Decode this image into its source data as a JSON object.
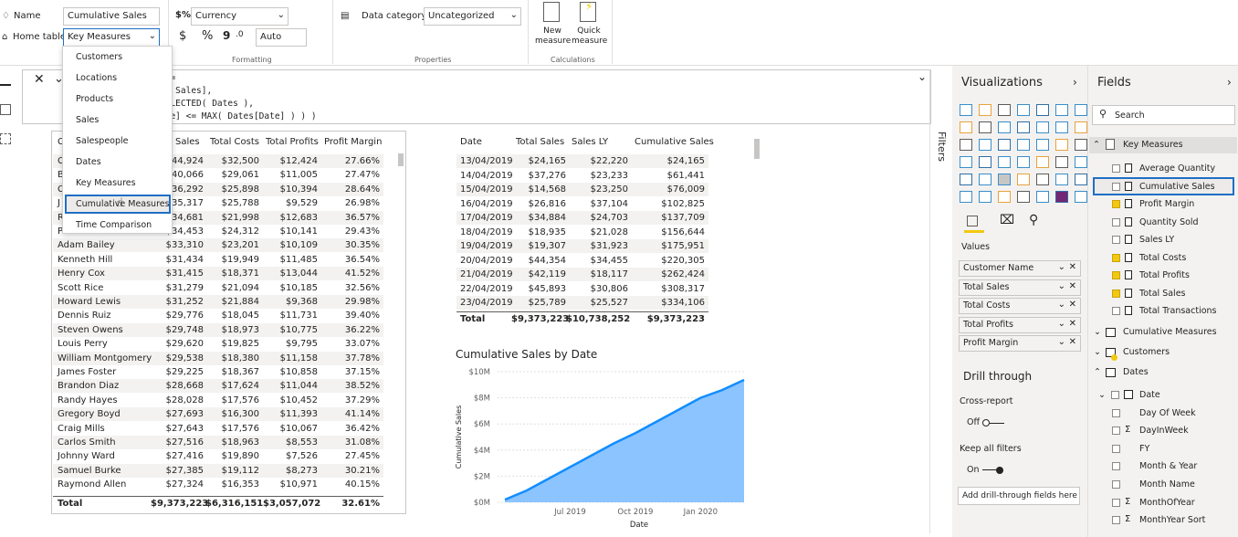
{
  "ribbon": {
    "name_label": "Name",
    "name_value": "Cumulative Sales",
    "home_table_label": "Home table",
    "home_table_value": "Key Measures",
    "format_value": "Currency",
    "currency_symbol": "$",
    "percent_symbol": "%",
    "comma_symbol": "9",
    "decimal_value": "Auto",
    "formatting_group": "Formatting",
    "data_category_label": "Data category",
    "data_category_value": "Uncategorized",
    "properties_group": "Properties",
    "new_measure_label": "New measure",
    "quick_measure_label": "Quick measure",
    "calculations_group": "Calculations"
  },
  "dropdown": {
    "items": [
      "Customers",
      "Locations",
      "Products",
      "Sales",
      "Salespeople",
      "Dates",
      "Key Measures",
      "Cumulative Measures",
      "Time Comparison"
    ],
    "selected": "Cumulative Measures"
  },
  "formula": {
    "lines": [
      "s =",
      "al Sales],",
      "SELECTED( Dates ),",
      "ate] <= MAX( Dates[Date] ) ) )"
    ]
  },
  "left_table": {
    "headers": [
      "C",
      "Sales",
      "Total Costs",
      "Total Profits",
      "Profit Margin"
    ],
    "rows": [
      [
        "C",
        "$44,924",
        "$32,500",
        "$12,424",
        "27.66%"
      ],
      [
        "B",
        "$40,066",
        "$29,061",
        "$11,005",
        "27.47%"
      ],
      [
        "C",
        "$36,292",
        "$25,898",
        "$10,394",
        "28.64%"
      ],
      [
        "J",
        "$35,317",
        "$25,788",
        "$9,529",
        "26.98%"
      ],
      [
        "R",
        "$34,681",
        "$21,998",
        "$12,683",
        "36.57%"
      ],
      [
        "Patrick Morales",
        "$34,453",
        "$24,312",
        "$10,141",
        "29.43%"
      ],
      [
        "Adam Bailey",
        "$33,310",
        "$23,201",
        "$10,109",
        "30.35%"
      ],
      [
        "Kenneth Hill",
        "$31,434",
        "$19,949",
        "$11,485",
        "36.54%"
      ],
      [
        "Henry Cox",
        "$31,415",
        "$18,371",
        "$13,044",
        "41.52%"
      ],
      [
        "Scott Rice",
        "$31,279",
        "$21,094",
        "$10,185",
        "32.56%"
      ],
      [
        "Howard Lewis",
        "$31,252",
        "$21,884",
        "$9,368",
        "29.98%"
      ],
      [
        "Dennis Ruiz",
        "$29,776",
        "$18,045",
        "$11,731",
        "39.40%"
      ],
      [
        "Steven Owens",
        "$29,748",
        "$18,973",
        "$10,775",
        "36.22%"
      ],
      [
        "Louis Perry",
        "$29,620",
        "$19,825",
        "$9,795",
        "33.07%"
      ],
      [
        "William Montgomery",
        "$29,538",
        "$18,380",
        "$11,158",
        "37.78%"
      ],
      [
        "James Foster",
        "$29,225",
        "$18,367",
        "$10,858",
        "37.15%"
      ],
      [
        "Brandon Diaz",
        "$28,668",
        "$17,624",
        "$11,044",
        "38.52%"
      ],
      [
        "Randy Hayes",
        "$28,028",
        "$17,576",
        "$10,452",
        "37.29%"
      ],
      [
        "Gregory Boyd",
        "$27,693",
        "$16,300",
        "$11,393",
        "41.14%"
      ],
      [
        "Craig Mills",
        "$27,643",
        "$17,576",
        "$10,067",
        "36.42%"
      ],
      [
        "Carlos Smith",
        "$27,516",
        "$18,963",
        "$8,553",
        "31.08%"
      ],
      [
        "Johnny Ward",
        "$27,416",
        "$19,890",
        "$7,526",
        "27.45%"
      ],
      [
        "Samuel Burke",
        "$27,385",
        "$19,112",
        "$8,273",
        "30.21%"
      ],
      [
        "Raymond Allen",
        "$27,324",
        "$16,353",
        "$10,971",
        "40.15%"
      ]
    ],
    "total": [
      "Total",
      "$9,373,223",
      "$6,316,151",
      "$3,057,072",
      "32.61%"
    ]
  },
  "right_table": {
    "headers": [
      "Date",
      "Total Sales",
      "Sales LY",
      "Cumulative Sales"
    ],
    "rows": [
      [
        "13/04/2019",
        "$24,165",
        "$22,220",
        "$24,165"
      ],
      [
        "14/04/2019",
        "$37,276",
        "$23,233",
        "$61,441"
      ],
      [
        "15/04/2019",
        "$14,568",
        "$23,250",
        "$76,009"
      ],
      [
        "16/04/2019",
        "$26,816",
        "$37,104",
        "$102,825"
      ],
      [
        "17/04/2019",
        "$34,884",
        "$24,703",
        "$137,709"
      ],
      [
        "18/04/2019",
        "$18,935",
        "$21,028",
        "$156,644"
      ],
      [
        "19/04/2019",
        "$19,307",
        "$31,923",
        "$175,951"
      ],
      [
        "20/04/2019",
        "$44,354",
        "$34,455",
        "$220,305"
      ],
      [
        "21/04/2019",
        "$42,119",
        "$18,117",
        "$262,424"
      ],
      [
        "22/04/2019",
        "$45,893",
        "$30,806",
        "$308,317"
      ],
      [
        "23/04/2019",
        "$25,789",
        "$25,527",
        "$334,106"
      ]
    ],
    "total": [
      "Total",
      "$9,373,223",
      "$10,738,252",
      "$9,373,223"
    ]
  },
  "chart_data": {
    "type": "area",
    "title": "Cumulative Sales by Date",
    "xlabel": "Date",
    "ylabel": "Cumulative Sales",
    "yticks": [
      "$0M",
      "$2M",
      "$4M",
      "$6M",
      "$8M",
      "$10M"
    ],
    "xticks": [
      "Jul 2019",
      "Oct 2019",
      "Jan 2020"
    ],
    "ylim": [
      0,
      10
    ],
    "x": [
      "2019-04",
      "2019-05",
      "2019-06",
      "2019-07",
      "2019-08",
      "2019-09",
      "2019-10",
      "2019-11",
      "2019-12",
      "2020-01",
      "2020-02",
      "2020-03"
    ],
    "series": [
      {
        "values": [
          0.2,
          0.9,
          1.8,
          2.7,
          3.6,
          4.5,
          5.3,
          6.2,
          7.1,
          8.0,
          8.6,
          9.37
        ]
      }
    ],
    "color": "#118dff"
  },
  "visualizations": {
    "title": "Visualizations",
    "values_label": "Values",
    "wells": [
      "Customer Name",
      "Total Sales",
      "Total Costs",
      "Total Profits",
      "Profit Margin"
    ],
    "drill_title": "Drill through",
    "cross_report": "Cross-report",
    "off": "Off",
    "keep_filters": "Keep all filters",
    "on": "On",
    "add_drill": "Add drill-through fields here"
  },
  "filters_label": "Filters",
  "fields": {
    "title": "Fields",
    "search_placeholder": "Search",
    "key_measures": "Key Measures",
    "km_items": [
      {
        "label": "Average Quantity",
        "checked": false
      },
      {
        "label": "Cumulative Sales",
        "checked": false
      },
      {
        "label": "Profit Margin",
        "checked": true
      },
      {
        "label": "Quantity Sold",
        "checked": false
      },
      {
        "label": "Sales LY",
        "checked": false
      },
      {
        "label": "Total Costs",
        "checked": true
      },
      {
        "label": "Total Profits",
        "checked": true
      },
      {
        "label": "Total Sales",
        "checked": true
      },
      {
        "label": "Total Transactions",
        "checked": false
      }
    ],
    "cumulative_measures": "Cumulative Measures",
    "customers": "Customers",
    "dates": "Dates",
    "date_items": [
      "Date",
      "Day Of Week",
      "DayInWeek",
      "FY",
      "Month & Year",
      "Month Name",
      "MonthOfYear",
      "MonthYear Sort"
    ]
  },
  "colors": {
    "accent": "#1f6fc5",
    "yellow": "#f2c811",
    "area": "#118dff"
  }
}
